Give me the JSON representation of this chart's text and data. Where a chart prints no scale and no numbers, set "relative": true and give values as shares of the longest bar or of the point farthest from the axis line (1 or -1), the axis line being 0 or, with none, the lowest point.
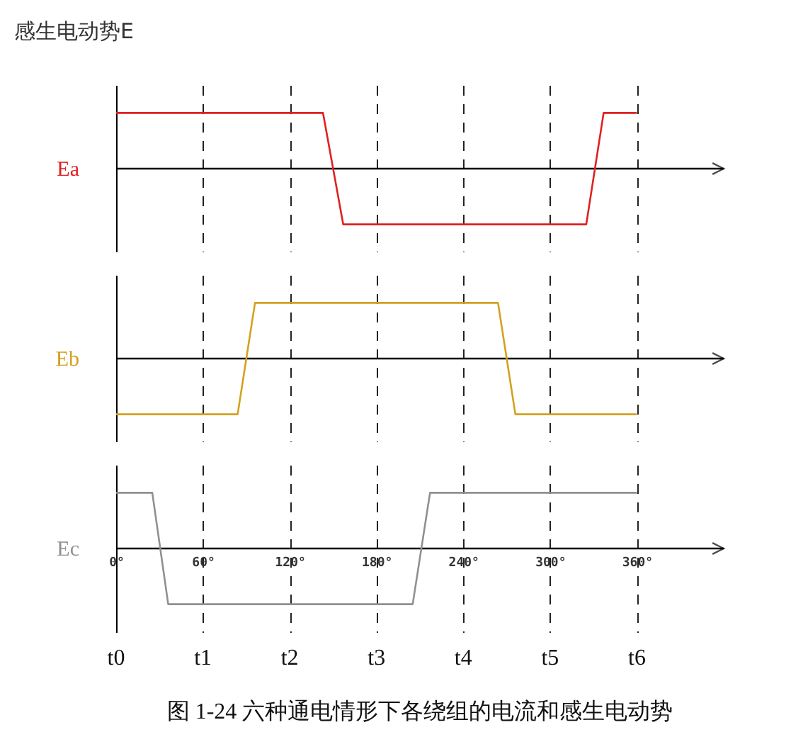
{
  "chart_data": [
    {
      "type": "line",
      "title": "感生电动势E",
      "relative": true,
      "grid": "x",
      "tick_labels": false,
      "xlim": [
        0,
        420
      ],
      "xticks": [
        {
          "value": 0,
          "label": null
        },
        {
          "value": 60,
          "label": null
        },
        {
          "value": 120,
          "label": null
        },
        {
          "value": 180,
          "label": null
        },
        {
          "value": 240,
          "label": null
        },
        {
          "value": 300,
          "label": null
        },
        {
          "value": 360,
          "label": null
        }
      ],
      "series": [
        {
          "name": "Ea",
          "color": "#e02020",
          "x": [
            0,
            143,
            157,
            325,
            337,
            360
          ],
          "values": [
            1,
            1,
            -1,
            -1,
            1,
            1
          ]
        }
      ]
    },
    {
      "type": "line",
      "relative": true,
      "grid": "x",
      "tick_labels": false,
      "xlim": [
        0,
        420
      ],
      "xticks": [
        {
          "value": 0,
          "label": null
        },
        {
          "value": 60,
          "label": null
        },
        {
          "value": 120,
          "label": null
        },
        {
          "value": 180,
          "label": null
        },
        {
          "value": 240,
          "label": null
        },
        {
          "value": 300,
          "label": null
        },
        {
          "value": 360,
          "label": null
        }
      ],
      "series": [
        {
          "name": "Eb",
          "color": "#d4a020",
          "x": [
            0,
            84,
            96,
            264,
            276,
            360
          ],
          "values": [
            -1,
            -1,
            1,
            1,
            -1,
            -1
          ]
        }
      ]
    },
    {
      "type": "line",
      "relative": true,
      "grid": "x",
      "tick_labels": "x",
      "xlim": [
        0,
        420
      ],
      "xticks": [
        {
          "value": 0,
          "label": "0°"
        },
        {
          "value": 60,
          "label": "60°"
        },
        {
          "value": 120,
          "label": "120°"
        },
        {
          "value": 180,
          "label": "180°"
        },
        {
          "value": 240,
          "label": "240°"
        },
        {
          "value": 300,
          "label": "300°"
        },
        {
          "value": 360,
          "label": "360°"
        }
      ],
      "series": [
        {
          "name": "Ec",
          "color": "#909090",
          "x": [
            0,
            25,
            36,
            205,
            217,
            360
          ],
          "values": [
            1,
            1,
            -1,
            -1,
            1,
            1
          ]
        }
      ],
      "annotations": [
        "t0",
        "t1",
        "t2",
        "t3",
        "t4",
        "t5",
        "t6",
        "图 1-24  六种通电情形下各绕组的电流和感生电动势"
      ]
    }
  ]
}
